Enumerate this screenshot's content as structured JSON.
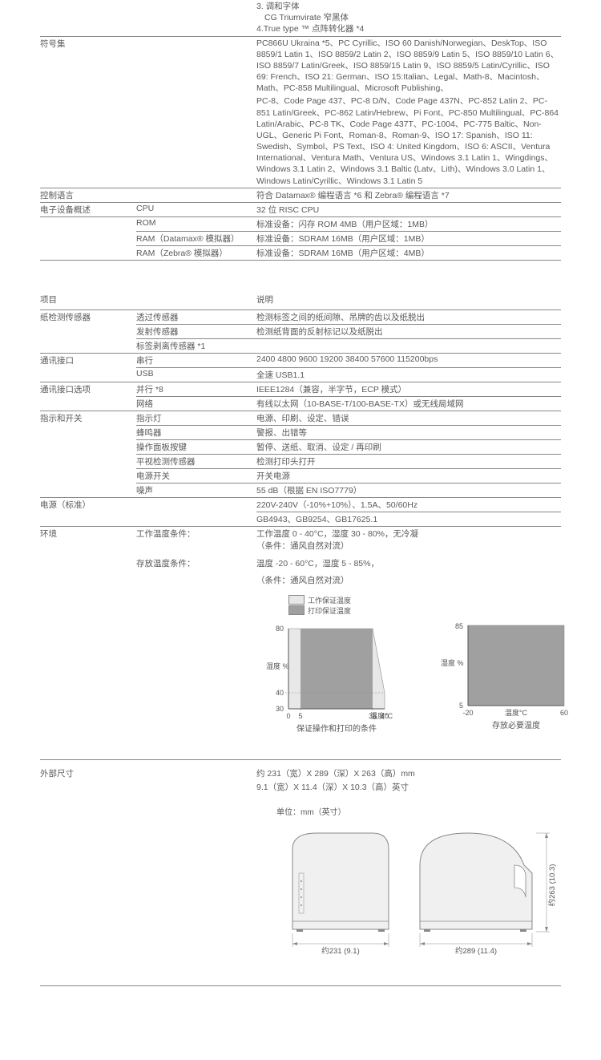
{
  "fonts": {
    "line3": "3. 调和字体",
    "line3b": "  CG Triumvirate 窄黑体",
    "line4": "4.True type ™ 点阵转化器 *4"
  },
  "symbolset": {
    "label": "符号集",
    "block1": "PC866U Ukraina *5、PC Cyrillic、ISO 60 Danish/Norwegian、DeskTop、ISO 8859/1 Latin 1、ISO 8859/2 Latin 2、ISO 8859/9 Latin 5、ISO 8859/10 Latin 6、ISO 8859/7 Latin/Greek、ISO 8859/15 Latin 9、ISO 8859/5 Latin/Cyrillic、ISO 69: French、ISO 21: German、ISO 15:Italian、Legal、Math-8、Macintosh、Math、PC-858 Multilingual、Microsoft Publishing、",
    "block2": "PC-8、Code Page 437、PC-8 D/N、Code Page 437N、PC-852 Latin 2、PC-851 Latin/Greek、PC-862 Latin/Hebrew、Pi Font、PC-850 Multilingual、PC-864 Latin/Arabic、PC-8 TK、Code Page 437T、PC-1004、PC-775 Baltic、Non-UGL、Generic Pi Font、Roman-8、Roman-9、ISO 17: Spanish、ISO 11: Swedish、Symbol、PS Text、ISO 4: United Kingdom、ISO 6: ASCII、Ventura International、Ventura Math、Ventura US、Windows 3.1 Latin 1、Wingdings、Windows 3.1 Latin 2、Windows 3.1 Baltic (Latv、Lith)、Windows 3.0 Latin 1、Windows Latin/Cyrillic、Windows 3.1 Latin 5"
  },
  "control_lang": {
    "label": "控制语言",
    "value": "符合 Datamax® 编程语言 *6 和 Zebra® 编程语言 *7"
  },
  "edev": {
    "label": "电子设备概述",
    "cpu": {
      "k": "CPU",
      "v": "32 位 RISC CPU"
    },
    "rom": {
      "k": "ROM",
      "v": "标准设备：闪存 ROM 4MB（用户区域：1MB）"
    },
    "ram1": {
      "k": "RAM（Datamax® 模拟器）",
      "v": "标准设备：SDRAM 16MB（用户区域：1MB）"
    },
    "ram2": {
      "k": "RAM（Zebra® 模拟器）",
      "v": "标准设备：SDRAM 16MB（用户区域：4MB）"
    }
  },
  "headers2": {
    "a": "项目",
    "c": "说明"
  },
  "paper": {
    "label": "纸检测传感器",
    "r1": {
      "k": "透过传感器",
      "v": "检测标签之间的纸间隙、吊牌的齿以及纸脱出"
    },
    "r2": {
      "k": "发射传感器",
      "v": "检测纸背面的反射标记以及纸脱出"
    },
    "r3": {
      "k": "标签剥离传感器 *1",
      "v": ""
    }
  },
  "comm": {
    "label": "通讯接口",
    "r1": {
      "k": "串行",
      "v": "2400 4800 9600 19200 38400 57600 115200bps"
    },
    "r2": {
      "k": "USB",
      "v": "全速  USB1.1"
    }
  },
  "commopt": {
    "label": "通讯接口选项",
    "r1": {
      "k": "并行 *8",
      "v": "IEEE1284（兼容，半字节，ECP 模式）"
    },
    "r2": {
      "k": "网络",
      "v": "有线以太网（10-BASE-T/100-BASE-TX）或无线局域网"
    }
  },
  "indic": {
    "label": "指示和开关",
    "r1": {
      "k": "指示灯",
      "v": "电源、印刷、设定、错误"
    },
    "r2": {
      "k": "蜂鸣器",
      "v": "警报、出错等"
    },
    "r3": {
      "k": "操作面板按键",
      "v": "暂停、送纸、取消、设定 / 再印刷"
    },
    "r4": {
      "k": "平视检测传感器",
      "v": "检测打印头打开"
    },
    "r5": {
      "k": "电源开关",
      "v": "开关电源"
    },
    "r6": {
      "k": "噪声",
      "v": "55 dB（根据 EN ISO7779）"
    }
  },
  "power": {
    "label": "电源（标准）",
    "r1": "220V-240V（-10%+10%）、1.5A、50/60Hz",
    "r2": "GB4943、GB9254、GB17625.1"
  },
  "env": {
    "label": "环境",
    "k1": "工作温度条件：",
    "v1a": "工作温度 0 - 40°C，湿度 30 - 80%，无冷凝",
    "v1b": "（条件：通风自然对流）",
    "k2": "存放温度条件：",
    "v2a": "温度 -20 - 60°C，湿度 5 - 85%，",
    "v2b": "（条件：通风自然对流）"
  },
  "chart1": {
    "legend1": "工作保证温度",
    "legend2": "打印保证温度",
    "legend1_color": "#e8e8e8",
    "legend2_color": "#a0a0a0",
    "ylabel": "湿度 %",
    "xlabel": "温度°C",
    "title": "保证操作和打印的条件",
    "xticks": [
      "0",
      "5",
      "35",
      "40"
    ],
    "yticks": [
      "30",
      "40",
      "80"
    ],
    "plot_bg": "#e8e8e8",
    "inner_bg": "#a0a0a0",
    "border": "#888888"
  },
  "chart2": {
    "ylabel": "湿度 %",
    "xlabel": "温度°C",
    "title": "存放必要温度",
    "xticks": [
      "-20",
      "60"
    ],
    "yticks": [
      "5",
      "85"
    ],
    "fill": "#a0a0a0",
    "border": "#888888"
  },
  "dims": {
    "label": "外部尺寸",
    "line1": "约 231（宽）X 289（深）X 263（高）mm",
    "line2": "9.1（宽）X 11.4（深）X 10.3（高）英寸",
    "unit": "单位：mm（英寸）",
    "w": "约231 (9.1)",
    "d": "约289 (11.4)",
    "h": "约263 (10.3)",
    "body_fill": "#f0f0f0",
    "line_color": "#888888"
  }
}
